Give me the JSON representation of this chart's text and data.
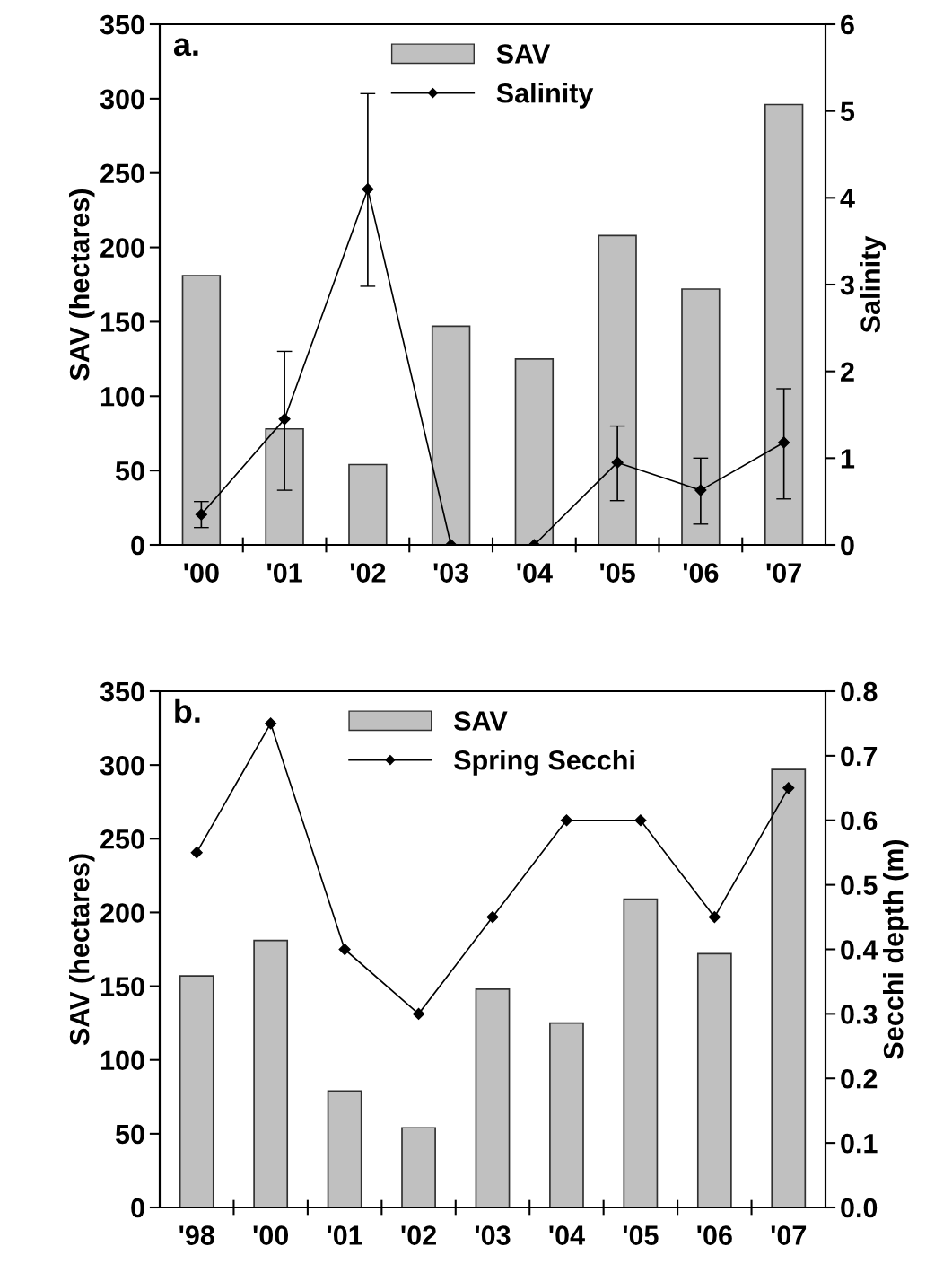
{
  "chart_data": [
    {
      "type": "bar",
      "categories": [
        "'00",
        "'01",
        "'02",
        "'03",
        "'04",
        "'05",
        "'06",
        "'07"
      ],
      "ylabel": "SAV (hectares)",
      "y2label": "Salinity",
      "ylim": [
        0,
        350
      ],
      "yticks": [
        0,
        50,
        100,
        150,
        200,
        250,
        300,
        350
      ],
      "y2lim": [
        0,
        6
      ],
      "y2ticks": [
        0,
        1,
        2,
        3,
        4,
        5,
        6
      ],
      "legend": "top",
      "marker": "diamond",
      "grid": false,
      "annotations": [
        "a."
      ],
      "series": [
        {
          "name": "SAV",
          "color": "#c0c0c0",
          "values": [
            181,
            78,
            54,
            147,
            125,
            208,
            172,
            296
          ]
        },
        {
          "name": "Salinity",
          "type": "line",
          "axis": "y2",
          "color": "#000000",
          "values": [
            0.35,
            1.45,
            4.1,
            0,
            0,
            0.95,
            0.63,
            1.18
          ],
          "errors": [
            [
              0.2,
              0.5
            ],
            [
              0.63,
              2.23
            ],
            [
              2.98,
              5.2
            ],
            null,
            null,
            [
              0.51,
              1.37
            ],
            [
              0.24,
              1.0
            ],
            [
              0.53,
              1.8
            ]
          ]
        }
      ]
    },
    {
      "type": "bar",
      "categories": [
        "'98",
        "'00",
        "'01",
        "'02",
        "'03",
        "'04",
        "'05",
        "'06",
        "'07"
      ],
      "ylabel": "SAV (hectares)",
      "y2label": "Secchi depth (m)",
      "ylim": [
        0,
        350
      ],
      "yticks": [
        0,
        50,
        100,
        150,
        200,
        250,
        300,
        350
      ],
      "y2lim": [
        0,
        0.8
      ],
      "y2ticks": [
        {
          "value": 0,
          "label": "0.0"
        },
        0.1,
        0.2,
        0.3,
        0.4,
        0.5,
        0.6,
        0.7,
        0.8
      ],
      "legend": "top",
      "marker": "diamond",
      "grid": false,
      "annotations": [
        "b."
      ],
      "series": [
        {
          "name": "SAV",
          "color": "#c0c0c0",
          "values": [
            157,
            181,
            79,
            54,
            148,
            125,
            209,
            172,
            297
          ]
        },
        {
          "name": "Spring Secchi",
          "type": "line",
          "axis": "y2",
          "color": "#000000",
          "values": [
            0.55,
            0.75,
            0.4,
            0.3,
            0.45,
            0.6,
            0.6,
            0.45,
            0.65
          ]
        }
      ]
    }
  ]
}
